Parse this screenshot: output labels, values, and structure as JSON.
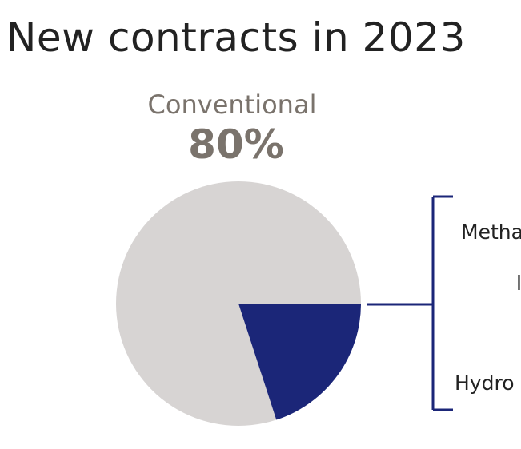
{
  "chart_data": {
    "type": "pie",
    "title": "New contracts in 2023",
    "slices": [
      {
        "name": "Conventional",
        "value": 80,
        "label": "80%",
        "color": "#d7d4d3"
      },
      {
        "name": "",
        "value": 20,
        "color": "#1b2678"
      }
    ],
    "breakout_labels": [
      "Metha",
      "l",
      "Hydro"
    ],
    "accent_color": "#1b2678",
    "label_color": "#7a736c"
  }
}
